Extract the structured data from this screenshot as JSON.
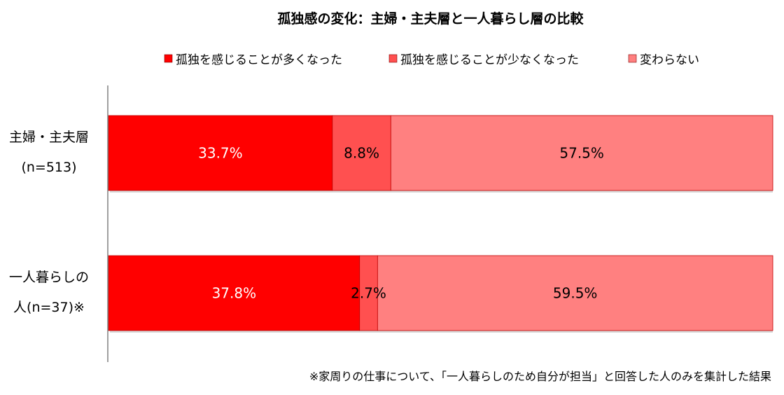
{
  "chart_data": {
    "type": "bar",
    "orientation": "horizontal",
    "stacked": "percent",
    "title": "孤独感の変化：主婦・主夫層と一人暮らし層の比較",
    "categories": [
      [
        "主婦・主夫層",
        "(n=513)"
      ],
      [
        "一人暮らしの",
        "人(n=37)※"
      ]
    ],
    "series": [
      {
        "name": "孤独を感じることが多くなった",
        "values": [
          33.7,
          37.8
        ],
        "labels": [
          "33.7%",
          "37.8%"
        ],
        "color": "#ff0000",
        "label_color": "#ffffff"
      },
      {
        "name": "孤独を感じることが少なくなった",
        "values": [
          8.8,
          2.7
        ],
        "labels": [
          "8.8%",
          "2.7%"
        ],
        "color": "#ff5050",
        "label_color": "#000000"
      },
      {
        "name": "変わらない",
        "values": [
          57.5,
          59.5
        ],
        "labels": [
          "57.5%",
          "59.5%"
        ],
        "color": "#ff8080",
        "label_color": "#000000"
      }
    ],
    "xlim": [
      0,
      100
    ],
    "grid": false,
    "legend_position": "top"
  },
  "footnote": "※家周りの仕事について、「一人暮らしのため自分が担当」と回答した人のみを集計した結果"
}
